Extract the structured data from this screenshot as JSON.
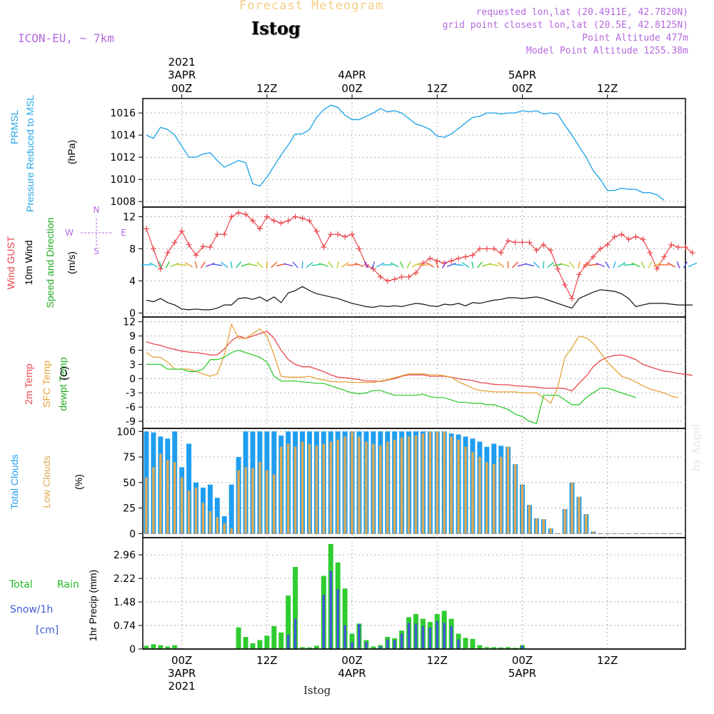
{
  "header": {
    "forecast_title": "Forecast Meteogram",
    "station": "Istog",
    "model": "ICON-EU, ~ 7km",
    "info_lines": [
      "requested lon,lat (20.4911E, 42.7820N)",
      "grid point closest lon,lat (20.5E, 42.8125N)",
      "Point Altitude 477m",
      "Model Point Altitude 1255.38m"
    ],
    "watermark": "by Angel",
    "footer_station": "Istog"
  },
  "colors": {
    "pressure": "#29a7e8",
    "gust": "#e8474d",
    "wind": "#111111",
    "t2m": "#e8474d",
    "tsfc": "#e5a43a",
    "dewpt": "#33cc33",
    "total_cloud": "#1f9ef0",
    "low_cloud": "#dcaa58",
    "rain": "#2fcc2f",
    "snow": "#3f5ad8",
    "axis_label_purple": "#b56adf"
  },
  "time_axis": {
    "top_year": "2021",
    "ticks": [
      {
        "t": 0,
        "hour": "00Z",
        "date": "3APR"
      },
      {
        "t": 12,
        "hour": "12Z",
        "date": ""
      },
      {
        "t": 24,
        "hour": "00Z",
        "date": "4APR"
      },
      {
        "t": 36,
        "hour": "12Z",
        "date": ""
      },
      {
        "t": 48,
        "hour": "00Z",
        "date": "5APR"
      },
      {
        "t": 60,
        "hour": "12Z",
        "date": ""
      }
    ],
    "bottom_year": "2021",
    "range_hours": [
      -5.5,
      71
    ]
  },
  "panels": {
    "pressure": {
      "labels": [
        "PRMSL",
        "Pressure Reduced to MSL",
        "(hPa)"
      ],
      "ticks": [
        "1008",
        "1010",
        "1012",
        "1014",
        "1016"
      ],
      "ylim": [
        1007.5,
        1017.3
      ]
    },
    "wind": {
      "labels": [
        "Wind GUST",
        "10m Wind",
        "Speed and Direction",
        "(m/s)"
      ],
      "ticks": [
        "0",
        "4",
        "8",
        "12"
      ],
      "ylim": [
        -0.5,
        13.2
      ],
      "compass": {
        "n": "N",
        "s": "S",
        "w": "W",
        "e": "E"
      }
    },
    "temp": {
      "labels": [
        "2m Temp",
        "SFC Temp",
        "dewpt Temp",
        "(C)"
      ],
      "ticks": [
        "-9",
        "-6",
        "-3",
        "0",
        "3",
        "6",
        "9",
        "12"
      ],
      "ylim": [
        -10.5,
        13
      ]
    },
    "clouds": {
      "labels": [
        "Total Clouds",
        "Low Clouds",
        "(%)"
      ],
      "ticks": [
        "0",
        "25",
        "50",
        "75",
        "100"
      ],
      "ylim": [
        -4,
        103
      ]
    },
    "precip": {
      "labels": [
        "Total",
        "Rain",
        "Snow/1h",
        "[cm]",
        "1hr Precip (mm)"
      ],
      "ticks": [
        "0",
        "0.74",
        "1.48",
        "2.22",
        "2.96"
      ],
      "ylim": [
        0,
        3.5
      ]
    }
  },
  "chart_data": [
    {
      "type": "line",
      "title": "PRMSL Pressure Reduced to MSL",
      "ylabel": "(hPa)",
      "x_start": -5,
      "x_step": 1,
      "series": [
        {
          "name": "PRMSL",
          "values": [
            1014.0,
            1013.7,
            1014.7,
            1014.5,
            1014.0,
            1013.0,
            1012.0,
            1012.0,
            1012.3,
            1012.4,
            1011.7,
            1011.1,
            1011.4,
            1011.7,
            1011.5,
            1009.6,
            1009.4,
            1010.2,
            1011.2,
            1012.2,
            1013.1,
            1014.1,
            1014.1,
            1014.5,
            1015.6,
            1016.3,
            1016.7,
            1016.5,
            1015.8,
            1015.4,
            1015.4,
            1015.7,
            1016.0,
            1016.4,
            1016.1,
            1016.2,
            1016.0,
            1015.5,
            1015.0,
            1014.8,
            1014.5,
            1013.9,
            1013.8,
            1014.1,
            1014.6,
            1015.1,
            1015.6,
            1015.7,
            1016.0,
            1016.0,
            1015.9,
            1016.0,
            1016.0,
            1016.2,
            1016.1,
            1016.2,
            1015.9,
            1016.0,
            1015.9,
            1014.9,
            1014.0,
            1013.0,
            1012.0,
            1010.8,
            1010.0,
            1009.0,
            1009.0,
            1009.2,
            1009.1,
            1009.1,
            1008.8,
            1008.8,
            1008.6,
            1008.1
          ]
        }
      ]
    },
    {
      "type": "line",
      "title": "Wind GUST / 10m Wind Speed and Direction",
      "ylabel": "(m/s)",
      "x_start": -5,
      "x_step": 1,
      "series": [
        {
          "name": "Wind GUST",
          "values": [
            10.5,
            8.0,
            5.5,
            7.5,
            8.8,
            10.2,
            8.5,
            7.2,
            8.3,
            8.2,
            9.8,
            9.8,
            12.0,
            12.5,
            12.3,
            11.5,
            10.5,
            12.0,
            11.5,
            11.2,
            11.5,
            12.0,
            11.8,
            11.5,
            10.2,
            8.2,
            9.8,
            9.8,
            9.5,
            9.8,
            8.0,
            6.0,
            5.5,
            4.5,
            4.0,
            4.2,
            4.5,
            4.5,
            5.0,
            6.2,
            6.8,
            6.5,
            6.2,
            6.5,
            6.8,
            7.0,
            7.2,
            8.0,
            8.0,
            8.0,
            7.5,
            9.0,
            8.8,
            8.8,
            8.8,
            7.8,
            8.5,
            7.8,
            5.5,
            3.5,
            1.8,
            4.8,
            6.0,
            7.0,
            8.0,
            8.5,
            9.5,
            9.8,
            9.2,
            9.5,
            9.2,
            7.5,
            5.5,
            7.0,
            8.5,
            8.2,
            8.2,
            7.5
          ]
        },
        {
          "name": "10m Wind",
          "values": [
            1.6,
            1.4,
            1.8,
            1.3,
            1.0,
            0.5,
            0.4,
            0.5,
            0.4,
            0.4,
            0.6,
            1.0,
            1.0,
            1.8,
            1.9,
            1.7,
            2.0,
            1.5,
            2.0,
            1.3,
            2.5,
            2.8,
            3.3,
            2.8,
            2.4,
            2.2,
            2.0,
            1.8,
            1.5,
            1.2,
            1.0,
            0.8,
            0.7,
            0.9,
            0.8,
            0.9,
            0.8,
            1.0,
            1.2,
            1.1,
            0.9,
            0.8,
            1.1,
            1.0,
            1.2,
            0.9,
            1.3,
            1.2,
            1.4,
            1.6,
            1.7,
            1.9,
            1.9,
            1.8,
            1.9,
            2.0,
            1.8,
            1.5,
            1.2,
            0.9,
            0.6,
            1.8,
            2.2,
            2.6,
            2.9,
            2.8,
            2.7,
            2.4,
            1.8,
            0.8,
            1.0,
            1.2,
            1.2,
            1.2,
            1.1,
            1.0,
            1.0,
            1.0
          ]
        }
      ]
    },
    {
      "type": "line",
      "title": "2m Temp / SFC Temp / dewpt Temp",
      "ylabel": "(C)",
      "x_start": -5,
      "x_step": 1,
      "series": [
        {
          "name": "2m Temp",
          "values": [
            7.8,
            7.3,
            7.0,
            6.5,
            6.2,
            5.8,
            5.6,
            5.5,
            5.3,
            5.0,
            5.0,
            6.3,
            8.0,
            9.0,
            8.5,
            9.0,
            9.5,
            10.0,
            8.5,
            6.0,
            4.0,
            3.0,
            2.5,
            2.5,
            2.0,
            1.5,
            0.8,
            0.3,
            0.2,
            0.0,
            -0.2,
            -0.5,
            -0.5,
            -0.6,
            -0.3,
            0.0,
            0.5,
            0.8,
            0.8,
            0.8,
            0.5,
            0.5,
            0.5,
            0.3,
            0.0,
            -0.2,
            -0.4,
            -0.8,
            -1.0,
            -1.2,
            -1.3,
            -1.3,
            -1.5,
            -1.6,
            -1.7,
            -1.8,
            -2.0,
            -2.0,
            -2.0,
            -2.1,
            -2.6,
            -1.0,
            0.5,
            2.5,
            3.8,
            4.5,
            4.9,
            5.0,
            4.6,
            4.0,
            3.0,
            2.5,
            2.0,
            1.6,
            1.4,
            1.1,
            0.9,
            0.7
          ]
        },
        {
          "name": "SFC Temp",
          "values": [
            5.5,
            4.5,
            4.5,
            3.5,
            2.0,
            2.0,
            2.0,
            1.5,
            1.0,
            0.5,
            1.0,
            5.0,
            11.5,
            8.5,
            8.5,
            9.5,
            10.5,
            9.0,
            5.0,
            0.5,
            0.3,
            0.3,
            0.3,
            0.5,
            0.0,
            -0.3,
            -0.6,
            -0.7,
            -0.7,
            -0.8,
            -0.8,
            -0.8,
            -0.8,
            -0.5,
            -0.2,
            0.2,
            0.6,
            1.0,
            1.0,
            1.0,
            0.8,
            0.8,
            0.6,
            0.3,
            -0.7,
            -1.3,
            -2.0,
            -2.5,
            -2.6,
            -2.8,
            -2.8,
            -2.8,
            -2.8,
            -3.0,
            -3.0,
            -3.0,
            -4.0,
            -5.2,
            -1.8,
            4.5,
            6.5,
            9.0,
            8.6,
            7.5,
            5.5,
            3.5,
            2.0,
            0.5,
            0.0,
            -0.7,
            -1.5,
            -2.2,
            -2.6,
            -3.0,
            -3.7,
            -4.0
          ]
        },
        {
          "name": "dewpt Temp",
          "values": [
            3.0,
            3.0,
            3.0,
            2.0,
            2.0,
            2.0,
            1.5,
            1.5,
            2.0,
            4.0,
            4.0,
            4.5,
            5.5,
            6.0,
            5.5,
            5.0,
            4.5,
            3.5,
            0.5,
            -0.5,
            -0.5,
            -0.5,
            -0.7,
            -0.8,
            -1.0,
            -1.0,
            -1.5,
            -2.0,
            -2.5,
            -3.0,
            -3.2,
            -3.0,
            -2.5,
            -2.5,
            -3.0,
            -3.5,
            -3.5,
            -3.5,
            -3.5,
            -3.3,
            -3.8,
            -4.0,
            -4.0,
            -4.5,
            -5.0,
            -5.0,
            -5.2,
            -5.2,
            -5.5,
            -5.5,
            -6.0,
            -6.5,
            -7.5,
            -8.0,
            -9.0,
            -9.5,
            -3.5,
            -3.5,
            -3.5,
            -4.5,
            -5.5,
            -5.5,
            -4.0,
            -3.0,
            -2.0,
            -2.0,
            -2.5,
            -3.0,
            -3.5,
            -4.0
          ]
        }
      ]
    },
    {
      "type": "bar",
      "title": "Total Clouds / Low Clouds",
      "ylabel": "(%)",
      "x_start": -5,
      "x_step": 1,
      "series": [
        {
          "name": "Total Clouds",
          "values": [
            100,
            99,
            95,
            93,
            100,
            65,
            88,
            50,
            45,
            48,
            35,
            17,
            48,
            75,
            100,
            100,
            100,
            100,
            100,
            96,
            100,
            100,
            100,
            100,
            100,
            100,
            100,
            100,
            100,
            100,
            100,
            100,
            100,
            100,
            100,
            100,
            100,
            100,
            100,
            100,
            100,
            100,
            100,
            98,
            97,
            95,
            93,
            90,
            85,
            88,
            86,
            85,
            68,
            48,
            28,
            15,
            14,
            5,
            0,
            24,
            50,
            36,
            19,
            2,
            0,
            0,
            0,
            0,
            0,
            0,
            0,
            0,
            0,
            0,
            0,
            0
          ]
        },
        {
          "name": "Low Clouds",
          "values": [
            55,
            65,
            78,
            72,
            70,
            55,
            42,
            45,
            30,
            22,
            16,
            10,
            5,
            62,
            65,
            64,
            70,
            62,
            58,
            85,
            88,
            85,
            90,
            88,
            86,
            88,
            90,
            92,
            95,
            100,
            95,
            90,
            88,
            86,
            90,
            92,
            94,
            95,
            96,
            98,
            100,
            100,
            100,
            95,
            92,
            85,
            80,
            75,
            70,
            68,
            75,
            85,
            68,
            48,
            28,
            15,
            14,
            5,
            0,
            24,
            50,
            36,
            19,
            2,
            0,
            0,
            0,
            0,
            0,
            0,
            0,
            0,
            0,
            0,
            0,
            0
          ]
        }
      ]
    },
    {
      "type": "bar",
      "title": "1hr Precip (mm)",
      "ylabel": "1hr Precip (mm)",
      "x_start": -5,
      "x_step": 1,
      "series": [
        {
          "name": "Total Rain",
          "values": [
            0.1,
            0.15,
            0.12,
            0.08,
            0.12,
            0,
            0,
            0,
            0,
            0,
            0,
            0,
            0,
            0.68,
            0.38,
            0.18,
            0.28,
            0.42,
            0.72,
            0.52,
            1.68,
            2.58,
            0.06,
            0.05,
            0.1,
            2.3,
            3.3,
            2.72,
            1.9,
            0.48,
            0.8,
            0.28,
            0.08,
            0.12,
            0.38,
            0.34,
            0.58,
            1.0,
            1.1,
            0.95,
            0.85,
            1.1,
            1.2,
            0.95,
            0.48,
            0.35,
            0.32,
            0.12,
            0.06,
            0.06,
            0.05,
            0.06,
            0.04,
            0.12,
            0,
            0,
            0,
            0,
            0,
            0,
            0,
            0,
            0,
            0,
            0,
            0,
            0,
            0,
            0,
            0,
            0,
            0,
            0,
            0,
            0,
            0
          ]
        },
        {
          "name": "Snow/1h",
          "values": [
            0,
            0,
            0,
            0,
            0,
            0,
            0,
            0,
            0,
            0,
            0,
            0,
            0,
            0,
            0,
            0,
            0,
            0,
            0,
            0,
            0.45,
            0.95,
            0,
            0,
            0,
            1.7,
            2.45,
            1.88,
            0.75,
            0.22,
            0.78,
            0.22,
            0,
            0.08,
            0.3,
            0.28,
            0.48,
            0.82,
            0.8,
            0.72,
            0.68,
            0.88,
            0.82,
            0.72,
            0.3,
            0,
            0,
            0,
            0,
            0,
            0,
            0,
            0,
            0.1,
            0,
            0,
            0,
            0,
            0,
            0,
            0,
            0,
            0,
            0,
            0,
            0,
            0,
            0,
            0,
            0,
            0,
            0,
            0,
            0,
            0,
            0
          ]
        }
      ]
    }
  ]
}
